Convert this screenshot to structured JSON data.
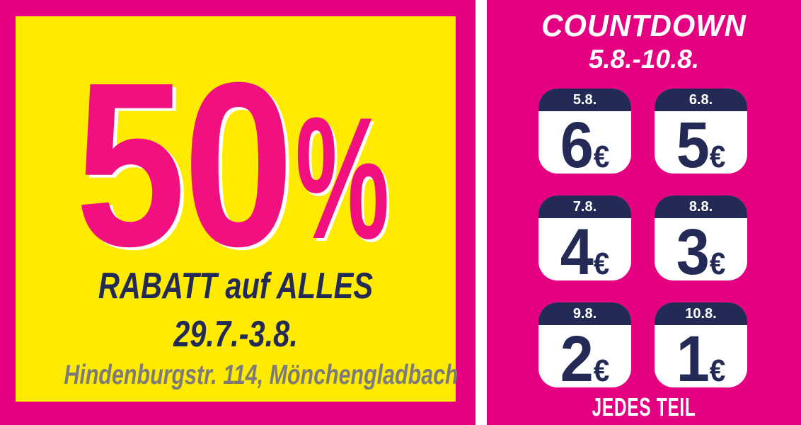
{
  "colors": {
    "background_magenta": "#e50081",
    "card_yellow": "#ffeb00",
    "discount_pink": "#f20f80",
    "navy": "#232a55",
    "address_gray": "#7c7b7a",
    "white": "#ffffff"
  },
  "left_panel": {
    "discount_value": "50",
    "discount_symbol": "%",
    "headline": "RABATT auf ALLES",
    "date_range": "29.7.-3.8.",
    "address": "Hindenburgstr. 114, Mönchengladbach"
  },
  "right_panel": {
    "title": "COUNTDOWN",
    "date_range": "5.8.-10.8.",
    "tiles": [
      {
        "date": "5.8.",
        "price": "6",
        "currency": "€"
      },
      {
        "date": "6.8.",
        "price": "5",
        "currency": "€"
      },
      {
        "date": "7.8.",
        "price": "4",
        "currency": "€"
      },
      {
        "date": "8.8.",
        "price": "3",
        "currency": "€"
      },
      {
        "date": "9.8.",
        "price": "2",
        "currency": "€"
      },
      {
        "date": "10.8.",
        "price": "1",
        "currency": "€"
      }
    ],
    "footer": "JEDES TEIL"
  }
}
